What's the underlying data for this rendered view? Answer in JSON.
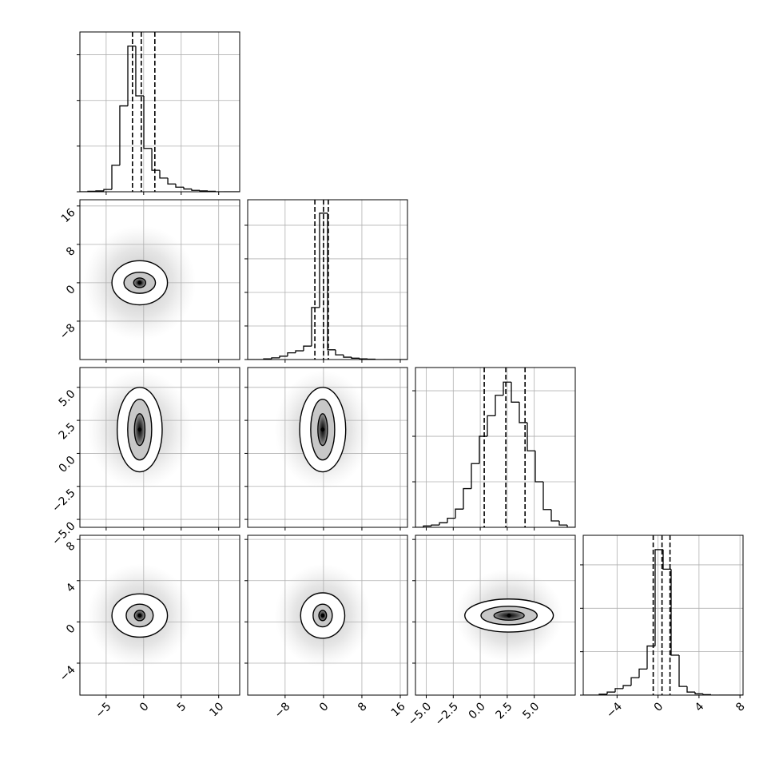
{
  "chart_data": {
    "type": "corner",
    "color": "#000000",
    "grid": true,
    "params": [
      {
        "xlim": [
          -8.5,
          12.8
        ],
        "xticks": [
          {
            "value": -5,
            "label": "−5"
          },
          {
            "value": 0,
            "label": "0"
          },
          {
            "value": 5,
            "label": "5"
          },
          {
            "value": 10,
            "label": "10"
          }
        ],
        "bins": [
          -8.5,
          -7.44,
          -6.37,
          -5.31,
          -4.24,
          -3.18,
          -2.11,
          -1.05,
          0.02,
          1.09,
          2.15,
          3.22,
          4.28,
          5.35,
          6.41,
          7.48,
          8.54,
          9.61,
          10.67,
          11.74,
          12.8
        ],
        "counts": [
          0,
          0.01,
          0.02,
          0.05,
          0.58,
          1.88,
          3.19,
          2.1,
          0.95,
          0.47,
          0.3,
          0.17,
          0.1,
          0.06,
          0.03,
          0.02,
          0.01,
          0,
          0,
          0
        ],
        "hist_ylim": [
          0,
          3.5
        ],
        "hist_yticks": [
          0,
          1,
          2,
          3
        ],
        "quantiles": [
          -1.49,
          -0.32,
          1.49
        ]
      },
      {
        "xlim": [
          -15.8,
          17.5
        ],
        "xticks": [
          {
            "value": -8,
            "label": "−8"
          },
          {
            "value": 0,
            "label": "0"
          },
          {
            "value": 8,
            "label": "8"
          },
          {
            "value": 16,
            "label": "16"
          }
        ],
        "ylim": [
          -16,
          17.3
        ],
        "yticks": [
          {
            "value": -8,
            "label": "−8"
          },
          {
            "value": 0,
            "label": "0"
          },
          {
            "value": 8,
            "label": "8"
          },
          {
            "value": 16,
            "label": "16"
          }
        ],
        "bins": [
          -15.8,
          -14.14,
          -12.47,
          -10.81,
          -9.14,
          -7.48,
          -5.81,
          -4.15,
          -2.48,
          -0.82,
          0.85,
          2.52,
          4.18,
          5.85,
          7.51,
          9.18,
          10.84,
          12.51,
          14.17,
          15.84,
          17.5
        ],
        "counts": [
          0,
          0,
          0.02,
          0.05,
          0.1,
          0.2,
          0.26,
          0.4,
          1.55,
          4.36,
          0.29,
          0.14,
          0.07,
          0.04,
          0.02,
          0.01,
          0,
          0,
          0,
          0
        ],
        "hist_ylim": [
          0,
          4.76
        ],
        "hist_yticks": [
          0,
          1,
          2,
          3,
          4
        ],
        "quantiles": [
          -1.8,
          0,
          1.0
        ]
      },
      {
        "xlim": [
          -6,
          8.8
        ],
        "xticks": [
          {
            "value": -5,
            "label": "−5.0"
          },
          {
            "value": -2.5,
            "label": "−2.5"
          },
          {
            "value": 0,
            "label": "0.0"
          },
          {
            "value": 2.5,
            "label": "2.5"
          },
          {
            "value": 5,
            "label": "5.0"
          }
        ],
        "ylim": [
          -5.6,
          6.5
        ],
        "yticks": [
          {
            "value": -5,
            "label": "−5.0"
          },
          {
            "value": -2.5,
            "label": "−2.5"
          },
          {
            "value": 0,
            "label": "0.0"
          },
          {
            "value": 2.5,
            "label": "2.5"
          },
          {
            "value": 5,
            "label": "5.0"
          }
        ],
        "bins": [
          -6,
          -5.26,
          -4.52,
          -3.78,
          -3.04,
          -2.3,
          -1.56,
          -0.82,
          -0.08,
          0.66,
          1.4,
          2.14,
          2.88,
          3.62,
          4.36,
          5.1,
          5.84,
          6.58,
          7.32,
          8.06,
          8.8
        ],
        "counts": [
          0,
          0.03,
          0.05,
          0.1,
          0.2,
          0.4,
          0.85,
          1.4,
          2.0,
          2.45,
          2.9,
          3.19,
          2.75,
          2.3,
          1.68,
          1.0,
          0.39,
          0.14,
          0.05,
          0
        ],
        "hist_ylim": [
          0,
          3.51
        ],
        "hist_yticks": [
          0,
          1,
          2,
          3
        ],
        "quantiles": [
          0.37,
          2.37,
          4.15
        ]
      },
      {
        "xlim": [
          -7.3,
          8.3
        ],
        "xticks": [
          {
            "value": -4,
            "label": "−4"
          },
          {
            "value": 0,
            "label": "0"
          },
          {
            "value": 4,
            "label": "4"
          },
          {
            "value": 8,
            "label": "8"
          }
        ],
        "ylim": [
          -7.1,
          8.4
        ],
        "yticks": [
          {
            "value": -4,
            "label": "−4"
          },
          {
            "value": 0,
            "label": "0"
          },
          {
            "value": 4,
            "label": "4"
          },
          {
            "value": 8,
            "label": "8"
          }
        ],
        "bins": [
          -7.3,
          -6.52,
          -5.74,
          -4.96,
          -4.18,
          -3.4,
          -2.62,
          -1.84,
          -1.06,
          -0.28,
          0.5,
          1.28,
          2.06,
          2.84,
          3.62,
          4.4,
          5.18,
          5.96,
          6.74,
          7.52,
          8.3
        ],
        "counts": [
          0,
          0,
          0.02,
          0.07,
          0.15,
          0.22,
          0.4,
          0.6,
          1.13,
          3.35,
          2.9,
          0.92,
          0.2,
          0.07,
          0.03,
          0.01,
          0,
          0,
          0,
          0
        ],
        "hist_ylim": [
          0,
          3.68
        ],
        "hist_yticks": [
          0,
          1,
          2,
          3
        ],
        "quantiles": [
          -0.47,
          0.39,
          1.17
        ]
      }
    ],
    "panels": [
      {
        "center": [
          -0.53,
          0
        ],
        "spread": [
          7.5,
          12
        ],
        "contours": [
          {
            "rx": 3.7,
            "ry": 4.6
          },
          {
            "rx": 2.1,
            "ry": 2.2
          },
          {
            "rx": 0.8,
            "ry": 1.0
          }
        ]
      },
      {
        "center": [
          -0.53,
          1.8
        ],
        "spread": [
          7,
          4.5
        ],
        "contours": [
          {
            "rx": 3.0,
            "ry": 3.2
          },
          {
            "rx": 1.6,
            "ry": 2.3
          },
          {
            "rx": 0.7,
            "ry": 1.2
          }
        ]
      },
      {
        "center": [
          -0.17,
          1.8
        ],
        "spread": [
          10,
          4.5
        ],
        "contours": [
          {
            "rx": 4.8,
            "ry": 3.2
          },
          {
            "rx": 2.5,
            "ry": 2.3
          },
          {
            "rx": 1.0,
            "ry": 1.2
          }
        ]
      },
      {
        "center": [
          -0.53,
          0.62
        ],
        "spread": [
          7,
          5
        ],
        "contours": [
          {
            "rx": 3.7,
            "ry": 2.1
          },
          {
            "rx": 1.8,
            "ry": 1.1
          },
          {
            "rx": 0.7,
            "ry": 0.5
          }
        ]
      },
      {
        "center": [
          -0.17,
          0.62
        ],
        "spread": [
          10,
          5
        ],
        "contours": [
          {
            "rx": 4.6,
            "ry": 2.2
          },
          {
            "rx": 2.0,
            "ry": 1.1
          },
          {
            "rx": 0.8,
            "ry": 0.5
          }
        ]
      },
      {
        "center": [
          2.67,
          0.62
        ],
        "spread": [
          5,
          4.5
        ],
        "contours": [
          {
            "rx": 4.1,
            "ry": 1.6
          },
          {
            "rx": 2.6,
            "ry": 0.9
          },
          {
            "rx": 1.4,
            "ry": 0.45
          }
        ]
      }
    ]
  }
}
